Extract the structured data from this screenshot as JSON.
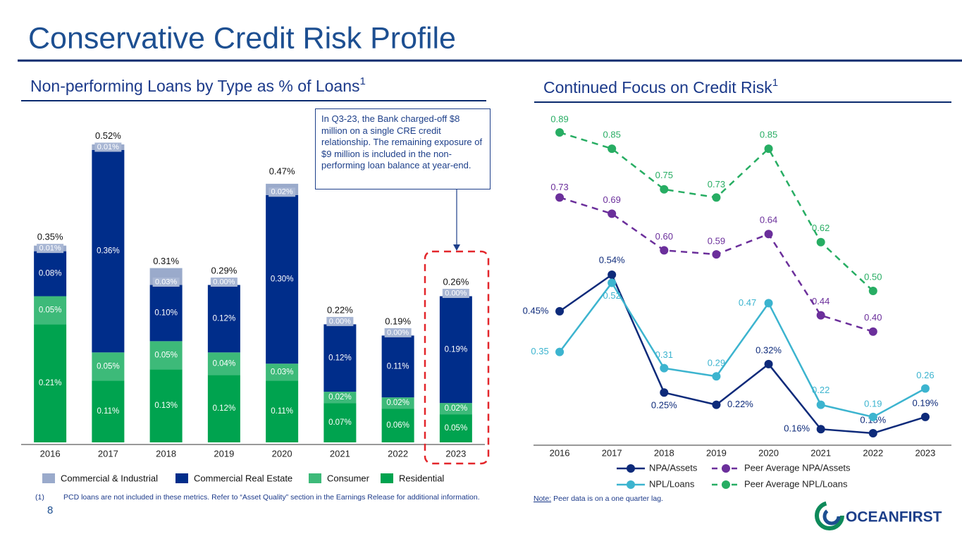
{
  "title": "Conservative Credit Risk Profile",
  "page_number": "8",
  "footnote": {
    "marker": "(1)",
    "text": "PCD loans are not included in these metrics. Refer to “Asset Quality” section in the Earnings Release for additional information."
  },
  "note": {
    "label": "Note:",
    "text": "Peer data is on a one quarter lag."
  },
  "logo": "OCEANFIRST",
  "chart_data": [
    {
      "type": "stacked_bar",
      "title": "Non-performing Loans by Type as % of Loans",
      "title_note": "1",
      "categories": [
        "2016",
        "2017",
        "2018",
        "2019",
        "2020",
        "2021",
        "2022",
        "2023"
      ],
      "series": [
        {
          "name": "Residential",
          "color": "#00a34f",
          "values": [
            0.21,
            0.11,
            0.13,
            0.12,
            0.11,
            0.07,
            0.06,
            0.05
          ],
          "value_labels": [
            "0.21%",
            "0.11%",
            "0.13%",
            "0.12%",
            "0.11%",
            "0.07%",
            "0.06%",
            "0.05%"
          ]
        },
        {
          "name": "Consumer",
          "color": "#3dba79",
          "values": [
            0.05,
            0.05,
            0.05,
            0.04,
            0.03,
            0.02,
            0.02,
            0.02
          ],
          "value_labels": [
            "0.05%",
            "0.05%",
            "0.05%",
            "0.04%",
            "0.03%",
            "0.02%",
            "0.02%",
            "0.02%"
          ]
        },
        {
          "name": "Commercial Real Estate",
          "color": "#002d8a",
          "values": [
            0.08,
            0.36,
            0.1,
            0.12,
            0.3,
            0.12,
            0.11,
            0.19
          ],
          "value_labels": [
            "0.08%",
            "0.36%",
            "0.10%",
            "0.12%",
            "0.30%",
            "0.12%",
            "0.11%",
            "0.19%"
          ]
        },
        {
          "name": "Commercial & Industrial",
          "color": "#9aaacb",
          "values": [
            0.01,
            0.01,
            0.03,
            0.0,
            0.02,
            0.0,
            0.0,
            0.0
          ],
          "value_labels": [
            "0.01%",
            "0.01%",
            "0.03%",
            "0.00%",
            "0.02%",
            "0.00%",
            "0.00%",
            "0.00%"
          ]
        }
      ],
      "totals": [
        0.35,
        0.52,
        0.31,
        0.29,
        0.47,
        0.22,
        0.19,
        0.26
      ],
      "total_labels": [
        "0.35%",
        "0.52%",
        "0.31%",
        "0.29%",
        "0.47%",
        "0.22%",
        "0.19%",
        "0.26%"
      ],
      "annotation": "In Q3-23, the Bank charged-off $8 million on a single CRE credit relationship. The remaining exposure of $9 million is included in the non-performing loan balance at year-end."
    },
    {
      "type": "line",
      "title": "Continued Focus on Credit Risk",
      "title_note": "1",
      "categories": [
        "2016",
        "2017",
        "2018",
        "2019",
        "2020",
        "2021",
        "2022",
        "2023"
      ],
      "series": [
        {
          "name": "NPA/Assets",
          "color": "#0d2a7a",
          "dashed": false,
          "values": [
            0.45,
            0.54,
            0.25,
            0.22,
            0.32,
            0.16,
            0.15,
            0.19
          ],
          "value_labels": [
            "0.45%",
            "0.54%",
            "0.25%",
            "0.22%",
            "0.32%",
            "0.16%",
            "0.15%",
            "0.19%"
          ]
        },
        {
          "name": "NPL/Loans",
          "color": "#3cb4cf",
          "dashed": false,
          "values": [
            0.35,
            0.52,
            0.31,
            0.29,
            0.47,
            0.22,
            0.19,
            0.26
          ],
          "value_labels": [
            "0.35",
            "0.52",
            "0.31",
            "0.29",
            "0.47",
            "0.22",
            "0.19",
            "0.26"
          ]
        },
        {
          "name": "Peer Average NPA/Assets",
          "color": "#6b2f9b",
          "dashed": true,
          "values": [
            0.73,
            0.69,
            0.6,
            0.59,
            0.64,
            0.44,
            0.4,
            null
          ],
          "value_labels": [
            "0.73",
            "0.69",
            "0.60",
            "0.59",
            "0.64",
            "0.44",
            "0.40",
            null
          ]
        },
        {
          "name": "Peer Average NPL/Loans",
          "color": "#27ad63",
          "dashed": true,
          "values": [
            0.89,
            0.85,
            0.75,
            0.73,
            0.85,
            0.62,
            0.5,
            null
          ],
          "value_labels": [
            "0.89",
            "0.85",
            "0.75",
            "0.73",
            "0.85",
            "0.62",
            "0.50",
            null
          ]
        }
      ]
    }
  ]
}
